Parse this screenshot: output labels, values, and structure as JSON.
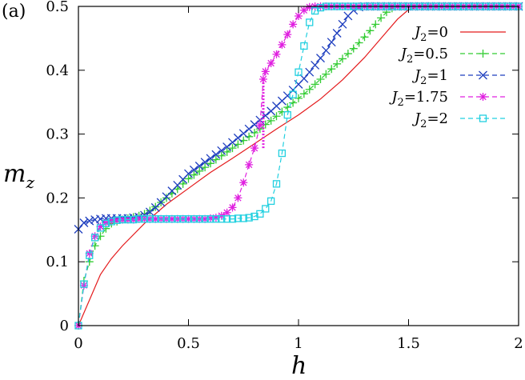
{
  "panel_label": "(a)",
  "chart_data": {
    "type": "line",
    "xlabel": "h",
    "ylabel": "m",
    "ylabel_sub": "z",
    "xlim": [
      0,
      2
    ],
    "ylim": [
      0,
      0.5
    ],
    "x_ticks": [
      0,
      0.5,
      1,
      1.5,
      2
    ],
    "x_tick_labels": [
      "0",
      "0.5",
      "1",
      "1.5",
      "2"
    ],
    "y_ticks": [
      0,
      0.1,
      0.2,
      0.3,
      0.4,
      0.5
    ],
    "y_tick_labels": [
      "0",
      "0.1",
      "0.2",
      "0.3",
      "0.4",
      "0.5"
    ],
    "grid": false,
    "legend_position": "top-right",
    "series": [
      {
        "name": "J2=0",
        "label_main": "J",
        "label_sub": "2",
        "label_rest": "=0",
        "color": "#e41a1c",
        "dash": "none",
        "marker": "none",
        "x": [
          0,
          0.05,
          0.1,
          0.15,
          0.2,
          0.3,
          0.4,
          0.5,
          0.6,
          0.7,
          0.8,
          0.9,
          1.0,
          1.1,
          1.2,
          1.3,
          1.4,
          1.45,
          1.5,
          1.55,
          1.6,
          2.0
        ],
        "y": [
          0,
          0.04,
          0.08,
          0.105,
          0.125,
          0.16,
          0.19,
          0.215,
          0.24,
          0.262,
          0.285,
          0.308,
          0.33,
          0.355,
          0.385,
          0.42,
          0.46,
          0.48,
          0.495,
          0.5,
          0.5,
          0.5
        ]
      },
      {
        "name": "J2=0.5",
        "label_main": "J",
        "label_sub": "2",
        "label_rest": "=0.5",
        "color": "#33cc33",
        "dash": "6,4",
        "marker": "plus",
        "x": [
          0,
          0.025,
          0.05,
          0.075,
          0.1,
          0.125,
          0.15,
          0.175,
          0.2,
          0.225,
          0.25,
          0.275,
          0.3,
          0.325,
          0.35,
          0.375,
          0.4,
          0.425,
          0.45,
          0.475,
          0.5,
          0.525,
          0.55,
          0.575,
          0.6,
          0.625,
          0.65,
          0.675,
          0.7,
          0.725,
          0.75,
          0.775,
          0.8,
          0.825,
          0.85,
          0.875,
          0.9,
          0.925,
          0.95,
          0.975,
          1.0,
          1.025,
          1.05,
          1.075,
          1.1,
          1.125,
          1.15,
          1.175,
          1.2,
          1.225,
          1.25,
          1.275,
          1.3,
          1.325,
          1.35,
          1.375,
          1.4,
          1.425,
          1.45,
          1.475,
          1.5,
          1.525,
          1.55,
          1.575,
          1.6,
          1.625,
          1.65,
          1.675,
          1.7,
          1.725,
          1.75,
          1.775,
          1.8,
          1.825,
          1.85,
          1.875,
          1.9,
          1.925,
          1.95,
          1.975,
          2.0
        ],
        "y": [
          0,
          0.07,
          0.1,
          0.125,
          0.14,
          0.152,
          0.16,
          0.163,
          0.166,
          0.168,
          0.17,
          0.172,
          0.175,
          0.18,
          0.186,
          0.193,
          0.2,
          0.207,
          0.214,
          0.222,
          0.23,
          0.236,
          0.242,
          0.248,
          0.254,
          0.26,
          0.266,
          0.272,
          0.278,
          0.284,
          0.29,
          0.296,
          0.302,
          0.308,
          0.315,
          0.321,
          0.328,
          0.335,
          0.342,
          0.349,
          0.356,
          0.363,
          0.37,
          0.378,
          0.386,
          0.394,
          0.402,
          0.41,
          0.418,
          0.426,
          0.434,
          0.443,
          0.452,
          0.462,
          0.472,
          0.482,
          0.491,
          0.497,
          0.5,
          0.5,
          0.5,
          0.5,
          0.5,
          0.5,
          0.5,
          0.5,
          0.5,
          0.5,
          0.5,
          0.5,
          0.5,
          0.5,
          0.5,
          0.5,
          0.5,
          0.5,
          0.5,
          0.5,
          0.5,
          0.5,
          0.5
        ]
      },
      {
        "name": "J2=1",
        "label_main": "J",
        "label_sub": "2",
        "label_rest": "=1",
        "color": "#1f3fbf",
        "dash": "6,4",
        "marker": "cross",
        "x": [
          0,
          0.025,
          0.05,
          0.075,
          0.1,
          0.125,
          0.15,
          0.175,
          0.2,
          0.225,
          0.25,
          0.275,
          0.3,
          0.325,
          0.35,
          0.375,
          0.4,
          0.425,
          0.45,
          0.475,
          0.5,
          0.525,
          0.55,
          0.575,
          0.6,
          0.625,
          0.65,
          0.675,
          0.7,
          0.725,
          0.75,
          0.775,
          0.8,
          0.825,
          0.85,
          0.875,
          0.9,
          0.925,
          0.95,
          0.975,
          1.0,
          1.025,
          1.05,
          1.075,
          1.1,
          1.125,
          1.15,
          1.175,
          1.2,
          1.225,
          1.25,
          1.275,
          1.3,
          1.325,
          1.35,
          1.375,
          1.4,
          1.425,
          1.45,
          1.475,
          1.5,
          1.525,
          1.55,
          1.575,
          1.6,
          1.625,
          1.65,
          1.675,
          1.7,
          1.725,
          1.75,
          1.775,
          1.8,
          1.825,
          1.85,
          1.875,
          1.9,
          1.925,
          1.95,
          1.975,
          2.0
        ],
        "y": [
          0.151,
          0.161,
          0.164,
          0.166,
          0.167,
          0.168,
          0.168,
          0.168,
          0.168,
          0.168,
          0.169,
          0.17,
          0.173,
          0.178,
          0.185,
          0.193,
          0.202,
          0.211,
          0.22,
          0.229,
          0.238,
          0.244,
          0.25,
          0.256,
          0.262,
          0.268,
          0.274,
          0.28,
          0.287,
          0.294,
          0.301,
          0.308,
          0.315,
          0.322,
          0.329,
          0.336,
          0.344,
          0.352,
          0.36,
          0.369,
          0.378,
          0.387,
          0.397,
          0.408,
          0.419,
          0.431,
          0.444,
          0.458,
          0.472,
          0.485,
          0.494,
          0.499,
          0.5,
          0.5,
          0.5,
          0.5,
          0.5,
          0.5,
          0.5,
          0.5,
          0.5,
          0.5,
          0.5,
          0.5,
          0.5,
          0.5,
          0.5,
          0.5,
          0.5,
          0.5,
          0.5,
          0.5,
          0.5,
          0.5,
          0.5,
          0.5,
          0.5,
          0.5,
          0.5,
          0.5,
          0.5
        ]
      },
      {
        "name": "J2=1.75",
        "label_main": "J",
        "label_sub": "2",
        "label_rest": "=1.75",
        "color": "#e020e0",
        "dash": "6,4",
        "marker": "star",
        "x": [
          0,
          0.025,
          0.05,
          0.075,
          0.1,
          0.125,
          0.15,
          0.175,
          0.2,
          0.225,
          0.25,
          0.275,
          0.3,
          0.325,
          0.35,
          0.375,
          0.4,
          0.425,
          0.45,
          0.475,
          0.5,
          0.525,
          0.55,
          0.575,
          0.6,
          0.625,
          0.65,
          0.675,
          0.7,
          0.725,
          0.75,
          0.775,
          0.8,
          0.825,
          0.84,
          0.85,
          0.875,
          0.9,
          0.925,
          0.95,
          0.975,
          1.0,
          1.025,
          1.05,
          1.075,
          1.1,
          1.125,
          1.15,
          1.175,
          1.2,
          1.225,
          1.25,
          1.275,
          1.3,
          1.325,
          1.35,
          1.375,
          1.4,
          1.425,
          1.45,
          1.475,
          1.5,
          1.525,
          1.55,
          1.575,
          1.6,
          1.625,
          1.65,
          1.675,
          1.7,
          1.725,
          1.75,
          1.775,
          1.8,
          1.825,
          1.85,
          1.875,
          1.9,
          1.925,
          1.95,
          1.975,
          2.0
        ],
        "y": [
          0,
          0.063,
          0.113,
          0.14,
          0.155,
          0.161,
          0.164,
          0.165,
          0.166,
          0.166,
          0.166,
          0.167,
          0.167,
          0.167,
          0.167,
          0.167,
          0.167,
          0.167,
          0.167,
          0.167,
          0.167,
          0.167,
          0.167,
          0.167,
          0.168,
          0.169,
          0.172,
          0.177,
          0.185,
          0.2,
          0.224,
          0.252,
          0.278,
          0.314,
          0.386,
          0.398,
          0.411,
          0.425,
          0.44,
          0.456,
          0.472,
          0.485,
          0.494,
          0.499,
          0.5,
          0.5,
          0.5,
          0.5,
          0.5,
          0.5,
          0.5,
          0.5,
          0.5,
          0.5,
          0.5,
          0.5,
          0.5,
          0.5,
          0.5,
          0.5,
          0.5,
          0.5,
          0.5,
          0.5,
          0.5,
          0.5,
          0.5,
          0.5,
          0.5,
          0.5,
          0.5,
          0.5,
          0.5,
          0.5,
          0.5,
          0.5,
          0.5,
          0.5,
          0.5,
          0.5,
          0.5,
          0.5
        ]
      },
      {
        "name": "J2=2",
        "label_main": "J",
        "label_sub": "2",
        "label_rest": "=2",
        "color": "#22d0e0",
        "dash": "6,4",
        "marker": "square",
        "x": [
          0,
          0.025,
          0.05,
          0.075,
          0.1,
          0.125,
          0.15,
          0.175,
          0.2,
          0.225,
          0.25,
          0.275,
          0.3,
          0.325,
          0.35,
          0.375,
          0.4,
          0.425,
          0.45,
          0.475,
          0.5,
          0.525,
          0.55,
          0.575,
          0.6,
          0.625,
          0.65,
          0.675,
          0.7,
          0.725,
          0.75,
          0.775,
          0.8,
          0.825,
          0.85,
          0.875,
          0.9,
          0.925,
          0.95,
          0.975,
          1.0,
          1.025,
          1.05,
          1.075,
          1.1,
          1.125,
          1.15,
          1.175,
          1.2,
          1.225,
          1.25,
          1.275,
          1.3,
          1.325,
          1.35,
          1.375,
          1.4,
          1.425,
          1.45,
          1.475,
          1.5,
          1.525,
          1.55,
          1.575,
          1.6,
          1.625,
          1.65,
          1.675,
          1.7,
          1.725,
          1.75,
          1.775,
          1.8,
          1.825,
          1.85,
          1.875,
          1.9,
          1.925,
          1.95,
          1.975,
          2.0
        ],
        "y": [
          0,
          0.065,
          0.11,
          0.138,
          0.153,
          0.16,
          0.163,
          0.165,
          0.166,
          0.166,
          0.166,
          0.167,
          0.167,
          0.167,
          0.167,
          0.167,
          0.167,
          0.167,
          0.167,
          0.167,
          0.167,
          0.167,
          0.167,
          0.167,
          0.167,
          0.167,
          0.167,
          0.167,
          0.167,
          0.168,
          0.168,
          0.169,
          0.171,
          0.175,
          0.183,
          0.195,
          0.222,
          0.27,
          0.33,
          0.362,
          0.397,
          0.438,
          0.475,
          0.493,
          0.498,
          0.5,
          0.5,
          0.5,
          0.5,
          0.5,
          0.5,
          0.5,
          0.5,
          0.5,
          0.5,
          0.5,
          0.5,
          0.5,
          0.5,
          0.5,
          0.5,
          0.5,
          0.5,
          0.5,
          0.5,
          0.5,
          0.5,
          0.5,
          0.5,
          0.5,
          0.5,
          0.5,
          0.5,
          0.5,
          0.5,
          0.5,
          0.5,
          0.5,
          0.5,
          0.5,
          0.5
        ]
      }
    ],
    "annotations": [
      {
        "type": "dotted-vertical",
        "x": 0.84,
        "y_from": 0.278,
        "y_to": 0.386,
        "color": "#e020e0"
      }
    ]
  }
}
